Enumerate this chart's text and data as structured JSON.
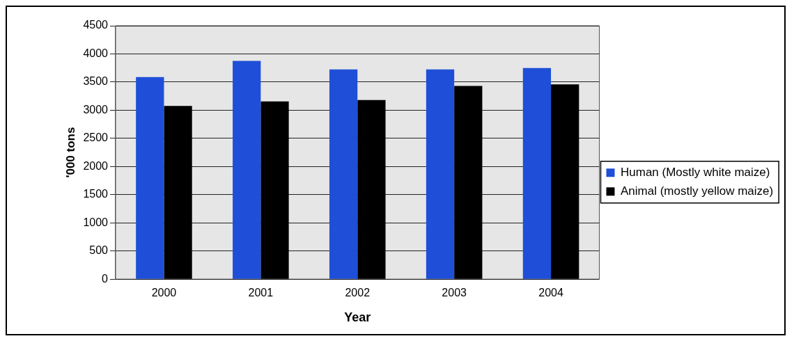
{
  "chart_data": {
    "type": "bar",
    "xlabel": "Year",
    "ylabel": "'000 tons",
    "categories": [
      "2000",
      "2001",
      "2002",
      "2003",
      "2004"
    ],
    "series": [
      {
        "name": "Human (Mostly white maize)",
        "color": "#1f4fd8",
        "values": [
          3590,
          3875,
          3725,
          3725,
          3750
        ]
      },
      {
        "name": "Animal (mostly yellow maize)",
        "color": "#000000",
        "values": [
          3075,
          3155,
          3180,
          3430,
          3460
        ]
      }
    ],
    "ylim": [
      0,
      4500
    ],
    "yticks": [
      0,
      500,
      1000,
      1500,
      2000,
      2500,
      3000,
      3500,
      4000,
      4500
    ],
    "grid": "y",
    "legend": "right"
  }
}
